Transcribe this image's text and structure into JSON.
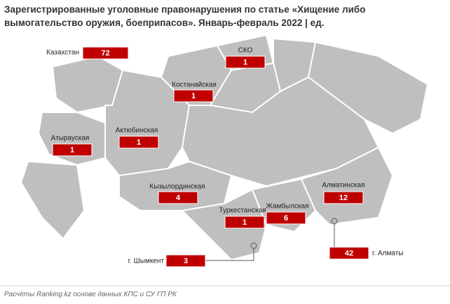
{
  "title": "Зарегистрированные уголовные правонарушения по статье «Хищение либо вымогательство оружия, боеприпасов». Январь-февраль 2022 | ед.",
  "regions": [
    {
      "name": "Казахстан",
      "value": 72
    },
    {
      "name": "СКО",
      "value": 1
    },
    {
      "name": "Костанайская",
      "value": 1
    },
    {
      "name": "Атырауская",
      "value": 1
    },
    {
      "name": "Актюбинская",
      "value": 1
    },
    {
      "name": "Кызылординская",
      "value": 4
    },
    {
      "name": "Туркестанская",
      "value": 1
    },
    {
      "name": "Жамбылская",
      "value": 6
    },
    {
      "name": "Алматинская",
      "value": 12
    },
    {
      "name": "г. Шымкент",
      "value": 3
    },
    {
      "name": "г. Алматы",
      "value": 42
    }
  ],
  "source": "Расчёты Ranking.kz основе данных КПС и СУ ГП РК"
}
